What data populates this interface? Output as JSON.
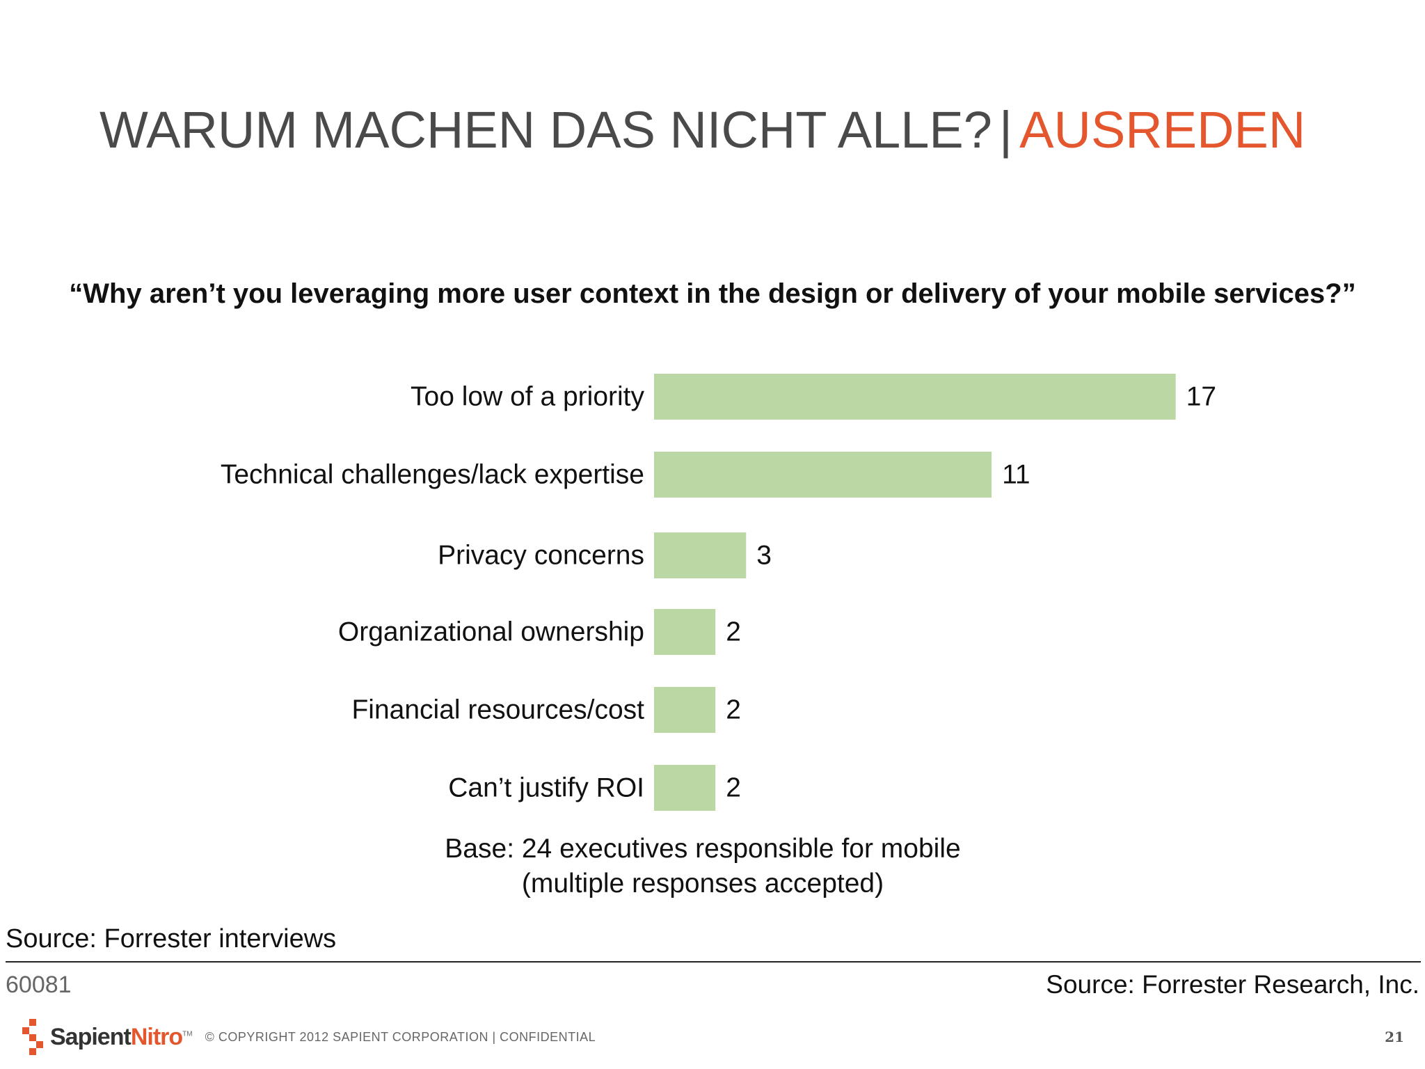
{
  "slide": {
    "title_main": "WARUM MACHEN DAS NICHT ALLE?",
    "title_separator": "|",
    "title_accent": "AUSREDEN",
    "question": "“Why aren’t you leveraging more user context in the design or delivery of your mobile services?”",
    "base_line1": "Base: 24 executives responsible for mobile",
    "base_line2": "(multiple responses accepted)",
    "source_left": "Source: Forrester interviews",
    "code": "60081",
    "source_right": "Source: Forrester Research, Inc.",
    "page_number": "21"
  },
  "footer": {
    "logo_part1": "Sapient",
    "logo_part2": "Nitro",
    "logo_tm": "TM",
    "copyright": "© COPYRIGHT 2012 SAPIENT CORPORATION  |  CONFIDENTIAL"
  },
  "colors": {
    "bar": "#bad7a4",
    "accent": "#e4572e",
    "title_gray": "#4a4a4a"
  },
  "chart_data": {
    "type": "bar",
    "orientation": "horizontal",
    "categories": [
      "Too low of a priority",
      "Technical challenges/lack expertise",
      "Privacy concerns",
      "Organizational ownership",
      "Financial resources/cost",
      "Can’t justify ROI"
    ],
    "values": [
      17,
      11,
      3,
      2,
      2,
      2
    ],
    "data_labels": [
      "17",
      "11",
      "3",
      "2",
      "2",
      "2"
    ],
    "xlim": [
      0,
      17
    ],
    "grid": false,
    "legend": "none"
  }
}
